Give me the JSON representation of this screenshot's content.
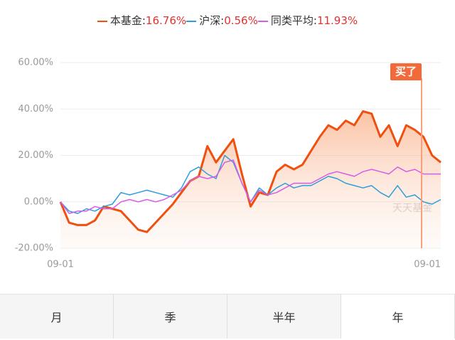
{
  "chart_data": {
    "type": "line",
    "legend_separator": ":",
    "categories": [
      "09-01",
      null,
      null,
      null,
      null,
      null,
      null,
      null,
      null,
      null,
      null,
      null,
      null,
      null,
      null,
      null,
      null,
      null,
      null,
      null,
      null,
      null,
      null,
      null,
      null,
      null,
      null,
      null,
      null,
      null,
      null,
      null,
      null,
      null,
      null,
      null,
      null,
      null,
      null,
      null,
      null,
      null,
      null,
      null,
      "09-01"
    ],
    "series": [
      {
        "name": "本基金",
        "color": "#f0500f",
        "area": true,
        "summary": {
          "value": 16.76,
          "label": "16.76%"
        },
        "values": [
          0,
          -9,
          -10,
          -10,
          -8,
          -2,
          -3,
          -4,
          -8,
          -12,
          -13,
          -9,
          -5,
          -1,
          4,
          9,
          11,
          24,
          17,
          22,
          27,
          12,
          -2,
          4,
          3,
          13,
          16,
          14,
          16,
          22,
          28,
          33,
          31,
          35,
          33,
          39,
          38,
          28,
          33,
          24,
          33,
          31,
          28,
          20,
          17
        ]
      },
      {
        "name": "沪深",
        "color": "#2d9fd8",
        "summary": {
          "value": 0.56,
          "label": "0.56%"
        },
        "values": [
          0,
          -4,
          -5,
          -3,
          -4,
          -2,
          -1,
          4,
          3,
          4,
          5,
          4,
          3,
          2,
          6,
          13,
          15,
          12,
          10,
          20,
          17,
          8,
          0,
          6,
          3,
          6,
          8,
          6,
          7,
          7,
          9,
          11,
          10,
          8,
          7,
          6,
          7,
          4,
          2,
          7,
          2,
          3,
          0,
          -1,
          1
        ]
      },
      {
        "name": "同类平均",
        "color": "#d65ce6",
        "summary": {
          "value": 11.93,
          "label": "11.93%"
        },
        "values": [
          0,
          -5,
          -4,
          -4,
          -2,
          -3,
          -3,
          0,
          1,
          0,
          1,
          0,
          1,
          3,
          5,
          9,
          11,
          10,
          11,
          17,
          18,
          8,
          0,
          5,
          3,
          4,
          6,
          8,
          8,
          8,
          10,
          12,
          13,
          12,
          11,
          13,
          14,
          13,
          12,
          15,
          13,
          14,
          12,
          12,
          12
        ]
      }
    ],
    "ylim": [
      -20,
      60
    ],
    "yticks": [
      {
        "value": -20,
        "label": "-20.00%"
      },
      {
        "value": 0,
        "label": "0.00%"
      },
      {
        "value": 20,
        "label": "20.00%"
      },
      {
        "value": 40,
        "label": "40.00%"
      },
      {
        "value": 60,
        "label": "60.00%"
      }
    ],
    "grid": true,
    "annotation": "买了",
    "watermark": "天天基金"
  },
  "tabs": [
    "月",
    "季",
    "半年",
    "年"
  ],
  "selected_tab": 3
}
